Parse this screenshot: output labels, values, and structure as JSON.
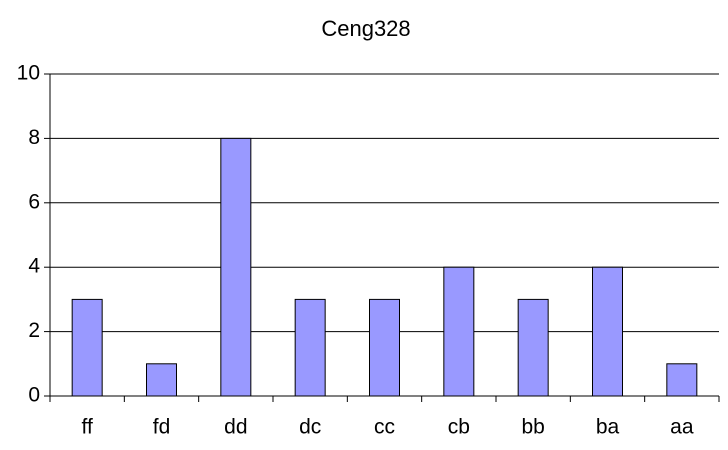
{
  "chart_data": {
    "type": "bar",
    "title": "Ceng328",
    "categories": [
      "ff",
      "fd",
      "dd",
      "dc",
      "cc",
      "cb",
      "bb",
      "ba",
      "aa"
    ],
    "values": [
      3,
      1,
      8,
      3,
      3,
      4,
      3,
      4,
      1
    ],
    "color": "#9999ff",
    "ylim": [
      0,
      10
    ],
    "yticks": [
      0,
      2,
      4,
      6,
      8,
      10
    ],
    "grid": true
  }
}
